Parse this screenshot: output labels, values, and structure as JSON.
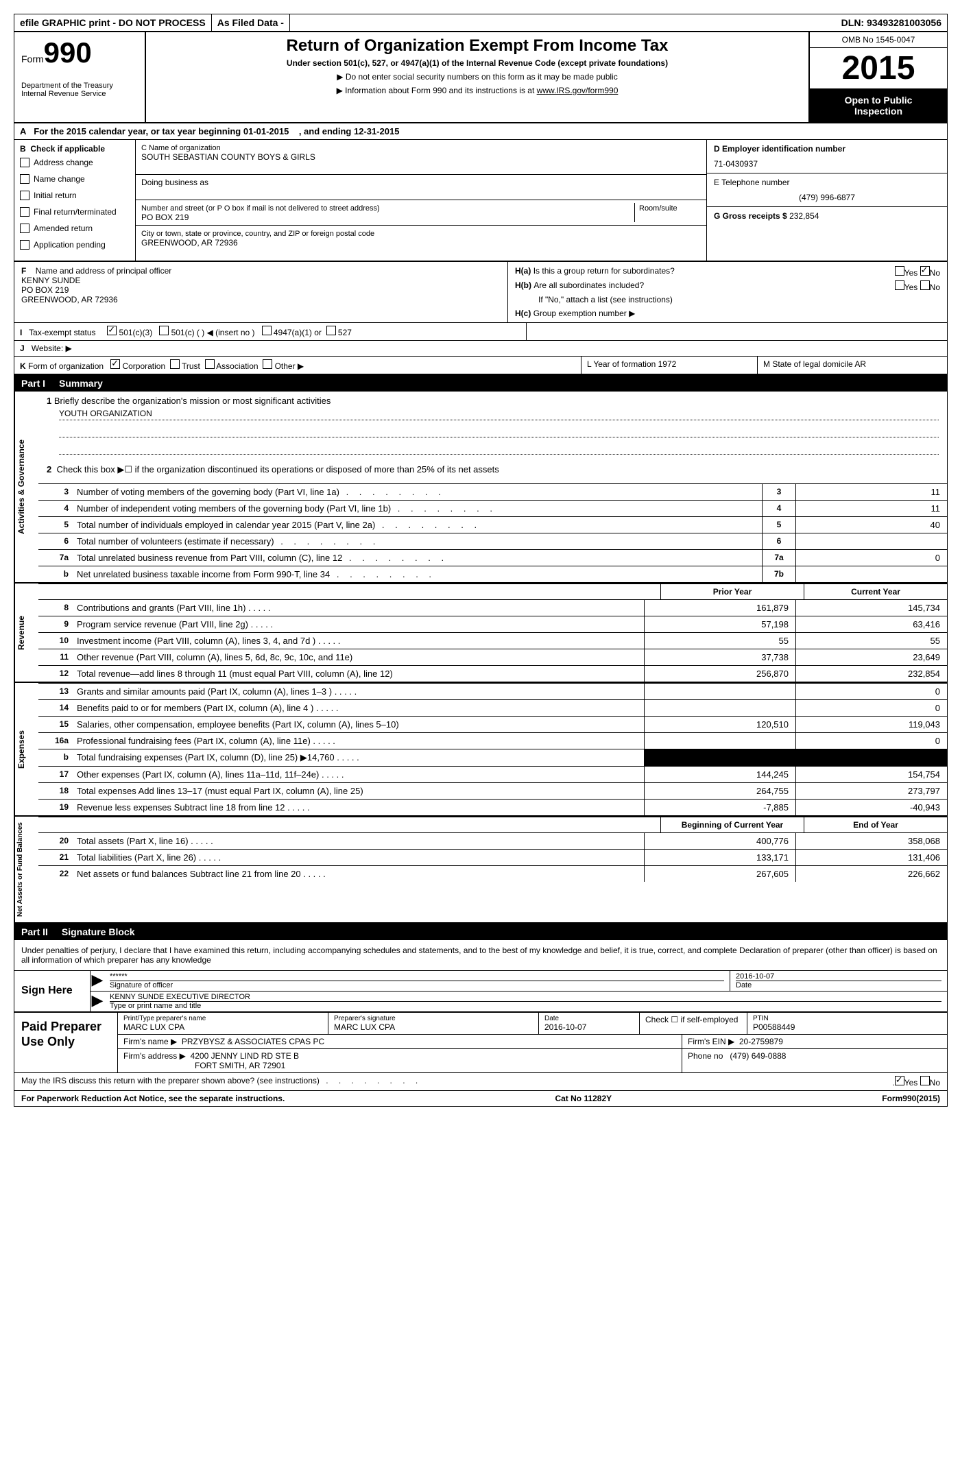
{
  "top_bar": {
    "efile": "efile GRAPHIC print - DO NOT PROCESS",
    "filed": "As Filed Data -",
    "dln_label": "DLN:",
    "dln": "93493281003056"
  },
  "header": {
    "form_word": "Form",
    "form_number": "990",
    "dept1": "Department of the Treasury",
    "dept2": "Internal Revenue Service",
    "title": "Return of Organization Exempt From Income Tax",
    "subtitle": "Under section 501(c), 527, or 4947(a)(1) of the Internal Revenue Code (except private foundations)",
    "note1": "▶ Do not enter social security numbers on this form as it may be made public",
    "note2": "▶ Information about Form 990 and its instructions is at",
    "note2_link": "www.IRS.gov/form990",
    "omb": "OMB No 1545-0047",
    "year": "2015",
    "open1": "Open to Public",
    "open2": "Inspection"
  },
  "row_a": {
    "label": "A",
    "text1": "For the 2015 calendar year, or tax year beginning 01-01-2015",
    "text2": ", and ending 12-31-2015"
  },
  "section_b": {
    "b_label": "B",
    "check_label": "Check if applicable",
    "checks": [
      "Address change",
      "Name change",
      "Initial return",
      "Final return/terminated",
      "Amended return",
      "Application pending"
    ],
    "c_name_label": "C Name of organization",
    "org_name": "SOUTH SEBASTIAN COUNTY BOYS & GIRLS",
    "dba_label": "Doing business as",
    "street_label": "Number and street (or P O  box if mail is not delivered to street address)",
    "room_label": "Room/suite",
    "street": "PO BOX 219",
    "city_label": "City or town, state or province, country, and ZIP or foreign postal code",
    "city": "GREENWOOD, AR  72936",
    "d_label": "D Employer identification number",
    "ein": "71-0430937",
    "e_label": "E Telephone number",
    "phone": "(479) 996-6877",
    "g_label": "G Gross receipts $",
    "gross": "232,854"
  },
  "fh": {
    "f_label": "F",
    "f_text": "Name and address of principal officer",
    "f_name": "KENNY SUNDE",
    "f_addr1": "PO BOX 219",
    "f_addr2": "GREENWOOD, AR  72936",
    "ha_label": "H(a)",
    "ha_text": "Is this a group return for subordinates?",
    "hb_label": "H(b)",
    "hb_text": "Are all subordinates included?",
    "hb_note": "If \"No,\" attach a list  (see instructions)",
    "hc_label": "H(c)",
    "hc_text": "Group exemption number ▶",
    "yes": "Yes",
    "no": "No"
  },
  "row_i": {
    "label": "I",
    "text": "Tax-exempt status",
    "opts": [
      "501(c)(3)",
      "501(c) (  ) ◀ (insert no )",
      "4947(a)(1) or",
      "527"
    ]
  },
  "row_j": {
    "label": "J",
    "text": "Website: ▶"
  },
  "row_k": {
    "label": "K",
    "text": "Form of organization",
    "opts": [
      "Corporation",
      "Trust",
      "Association",
      "Other ▶"
    ],
    "l_text": "L Year of formation  1972",
    "m_text": "M State of legal domicile  AR"
  },
  "part1": {
    "label": "Part I",
    "title": "Summary",
    "line1_label": "1",
    "line1_text": "Briefly describe the organization's mission or most significant activities",
    "line1_mission": "YOUTH ORGANIZATION",
    "line2_label": "2",
    "line2_text": "Check this box ▶☐ if the organization discontinued its operations or disposed of more than 25% of its net assets"
  },
  "gov_lines": [
    {
      "n": "3",
      "d": "Number of voting members of the governing body (Part VI, line 1a)",
      "box": "3",
      "v": "11"
    },
    {
      "n": "4",
      "d": "Number of independent voting members of the governing body (Part VI, line 1b)",
      "box": "4",
      "v": "11"
    },
    {
      "n": "5",
      "d": "Total number of individuals employed in calendar year 2015 (Part V, line 2a)",
      "box": "5",
      "v": "40"
    },
    {
      "n": "6",
      "d": "Total number of volunteers (estimate if necessary)",
      "box": "6",
      "v": ""
    },
    {
      "n": "7a",
      "d": "Total unrelated business revenue from Part VIII, column (C), line 12",
      "box": "7a",
      "v": "0"
    },
    {
      "n": "b",
      "d": "Net unrelated business taxable income from Form 990-T, line 34",
      "box": "7b",
      "v": ""
    }
  ],
  "cols": {
    "prior": "Prior Year",
    "current": "Current Year",
    "boy": "Beginning of Current Year",
    "eoy": "End of Year"
  },
  "revenue": [
    {
      "n": "8",
      "d": "Contributions and grants (Part VIII, line 1h)",
      "p": "161,879",
      "c": "145,734"
    },
    {
      "n": "9",
      "d": "Program service revenue (Part VIII, line 2g)",
      "p": "57,198",
      "c": "63,416"
    },
    {
      "n": "10",
      "d": "Investment income (Part VIII, column (A), lines 3, 4, and 7d )",
      "p": "55",
      "c": "55"
    },
    {
      "n": "11",
      "d": "Other revenue (Part VIII, column (A), lines 5, 6d, 8c, 9c, 10c, and 11e)",
      "p": "37,738",
      "c": "23,649"
    },
    {
      "n": "12",
      "d": "Total revenue—add lines 8 through 11 (must equal Part VIII, column (A), line 12)",
      "p": "256,870",
      "c": "232,854"
    }
  ],
  "expenses": [
    {
      "n": "13",
      "d": "Grants and similar amounts paid (Part IX, column (A), lines 1–3 )",
      "p": "",
      "c": "0"
    },
    {
      "n": "14",
      "d": "Benefits paid to or for members (Part IX, column (A), line 4 )",
      "p": "",
      "c": "0"
    },
    {
      "n": "15",
      "d": "Salaries, other compensation, employee benefits (Part IX, column (A), lines 5–10)",
      "p": "120,510",
      "c": "119,043"
    },
    {
      "n": "16a",
      "d": "Professional fundraising fees (Part IX, column (A), line 11e)",
      "p": "",
      "c": "0"
    },
    {
      "n": "b",
      "d": "Total fundraising expenses (Part IX, column (D), line 25) ▶14,760",
      "p": "BLACK",
      "c": "BLACK"
    },
    {
      "n": "17",
      "d": "Other expenses (Part IX, column (A), lines 11a–11d, 11f–24e)",
      "p": "144,245",
      "c": "154,754"
    },
    {
      "n": "18",
      "d": "Total expenses  Add lines 13–17 (must equal Part IX, column (A), line 25)",
      "p": "264,755",
      "c": "273,797"
    },
    {
      "n": "19",
      "d": "Revenue less expenses  Subtract line 18 from line 12",
      "p": "-7,885",
      "c": "-40,943"
    }
  ],
  "net_assets": [
    {
      "n": "20",
      "d": "Total assets (Part X, line 16)",
      "p": "400,776",
      "c": "358,068"
    },
    {
      "n": "21",
      "d": "Total liabilities (Part X, line 26)",
      "p": "133,171",
      "c": "131,406"
    },
    {
      "n": "22",
      "d": "Net assets or fund balances  Subtract line 21 from line 20",
      "p": "267,605",
      "c": "226,662"
    }
  ],
  "v_labels": {
    "gov": "Activities & Governance",
    "rev": "Revenue",
    "exp": "Expenses",
    "net": "Net Assets or Fund Balances"
  },
  "part2": {
    "label": "Part II",
    "title": "Signature Block",
    "perjury": "Under penalties of perjury, I declare that I have examined this return, including accompanying schedules and statements, and to the best of my knowledge and belief, it is true, correct, and complete  Declaration of preparer (other than officer) is based on all information of which preparer has any knowledge"
  },
  "sign": {
    "label": "Sign Here",
    "stars": "******",
    "sig_label": "Signature of officer",
    "date": "2016-10-07",
    "date_label": "Date",
    "name": "KENNY SUNDE EXECUTIVE DIRECTOR",
    "name_label": "Type or print name and title"
  },
  "prep": {
    "label": "Paid Preparer Use Only",
    "name_label": "Print/Type preparer's name",
    "name": "MARC LUX CPA",
    "sig_label": "Preparer's signature",
    "sig": "MARC LUX CPA",
    "date_label": "Date",
    "date": "2016-10-07",
    "check_label": "Check ☐ if self-employed",
    "ptin_label": "PTIN",
    "ptin": "P00588449",
    "firm_name_label": "Firm's name      ▶",
    "firm_name": "PRZYBYSZ & ASSOCIATES CPAS PC",
    "firm_ein_label": "Firm's EIN ▶",
    "firm_ein": "20-2759879",
    "firm_addr_label": "Firm's address ▶",
    "firm_addr1": "4200 JENNY LIND RD STE B",
    "firm_addr2": "FORT SMITH, AR  72901",
    "phone_label": "Phone no",
    "phone": "(479) 649-0888"
  },
  "bottom": {
    "discuss": "May the IRS discuss this return with the preparer shown above? (see instructions)",
    "yes": "Yes",
    "no": "No"
  },
  "footer": {
    "left": "For Paperwork Reduction Act Notice, see the separate instructions.",
    "center": "Cat No  11282Y",
    "right": "Form990(2015)"
  }
}
